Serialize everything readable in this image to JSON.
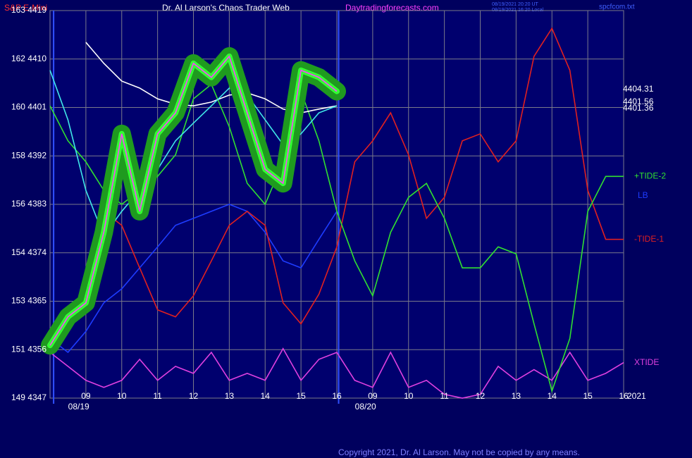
{
  "chart_data": {
    "type": "line",
    "title": "S&P E-Mini",
    "subtitle": "Dr. Al Larson's Chaos Trader Web",
    "website": "Daytradingforecasts.com",
    "timestamps": [
      "08/19/2021 20:20 UT",
      "08/19/2021 16:20 Local"
    ],
    "filename": "spcfcom.txt",
    "copyright": "Copyright 2021, Dr. Al Larson. May not be copied by any means.",
    "year_label": "2021",
    "x": [
      0,
      0.5,
      1,
      1.5,
      2,
      2.5,
      3,
      3.5,
      4,
      4.5,
      5,
      5.5,
      6,
      6.5,
      7,
      7.5,
      8,
      8.5,
      9,
      9.5,
      10,
      10.5,
      11,
      11.5,
      12,
      12.5,
      13,
      13.5,
      14,
      14.5,
      15,
      15.5,
      16
    ],
    "xlim": [
      0,
      16
    ],
    "xticks": [
      {
        "value": 1,
        "label": "09"
      },
      {
        "value": 2,
        "label": "10"
      },
      {
        "value": 3,
        "label": "11"
      },
      {
        "value": 4,
        "label": "12"
      },
      {
        "value": 5,
        "label": "13"
      },
      {
        "value": 6,
        "label": "14"
      },
      {
        "value": 7,
        "label": "15"
      },
      {
        "value": 8,
        "label": "16"
      },
      {
        "value": 9,
        "label": "09"
      },
      {
        "value": 10,
        "label": "10"
      },
      {
        "value": 11,
        "label": "11"
      },
      {
        "value": 12,
        "label": "12"
      },
      {
        "value": 13,
        "label": "13"
      },
      {
        "value": 14,
        "label": "14"
      },
      {
        "value": 15,
        "label": "15"
      },
      {
        "value": 16,
        "label": "16"
      }
    ],
    "date_labels": [
      {
        "value": 0.8,
        "label": "08/19"
      },
      {
        "value": 8.8,
        "label": "08/20"
      }
    ],
    "session_lines": [
      0.1,
      8.05
    ],
    "ylim": [
      4347,
      4419
    ],
    "yticks": [
      {
        "value": 4347,
        "label": "149 4347"
      },
      {
        "value": 4356,
        "label": "151 4356"
      },
      {
        "value": 4365,
        "label": "153 4365"
      },
      {
        "value": 4374,
        "label": "154 4374"
      },
      {
        "value": 4383,
        "label": "156 4383"
      },
      {
        "value": 4392,
        "label": "158 4392"
      },
      {
        "value": 4401,
        "label": "160 4401"
      },
      {
        "value": 4410,
        "label": "162 4410"
      },
      {
        "value": 4419,
        "label": "163 4419"
      }
    ],
    "grid": true,
    "end_labels": [
      "4404.31",
      "4401.56",
      "4401.36"
    ],
    "series": [
      {
        "name": "XTIDE",
        "color": "#e040e0",
        "values": [
          4355.5,
          4352.9,
          4350.3,
          4349.0,
          4350.3,
          4354.2,
          4350.3,
          4352.9,
          4351.6,
          4355.5,
          4350.3,
          4351.6,
          4350.3,
          4356.2,
          4350.3,
          4354.2,
          4355.5,
          4350.3,
          4349.0,
          4355.5,
          4349.0,
          4350.3,
          4347.7,
          4347.0,
          4347.7,
          4352.9,
          4350.3,
          4352.3,
          4350.3,
          4355.5,
          4350.3,
          4351.6,
          4353.6
        ]
      },
      {
        "name": "LB",
        "color": "#1e3cff",
        "values": [
          4358.1,
          4355.5,
          4359.4,
          4364.7,
          4367.3,
          4371.2,
          4375.1,
          4379.1,
          4380.4,
          4381.7,
          4383.0,
          4381.7,
          4377.8,
          4372.5,
          4371.2,
          4376.5,
          4381.7,
          null,
          null,
          null,
          null,
          null,
          null,
          null,
          null,
          null,
          null,
          null,
          null,
          null,
          null,
          null,
          null
        ]
      },
      {
        "name": "-TIDE-1",
        "color": "#e02020",
        "values": [
          null,
          null,
          null,
          4381.7,
          4379.1,
          4371.2,
          4363.4,
          4362.1,
          4366.0,
          4372.5,
          4379.1,
          4381.7,
          4379.1,
          4364.7,
          4360.8,
          4366.3,
          4375.1,
          4390.9,
          4394.8,
          4400.0,
          4392.2,
          4380.4,
          4384.3,
          4394.8,
          4396.1,
          4390.9,
          4394.8,
          4410.5,
          4415.7,
          4407.9,
          4385.6,
          4376.5,
          4376.5
        ]
      },
      {
        "name": "+TIDE-2",
        "color": "#30e030",
        "values": [
          4401.3,
          4394.8,
          4390.9,
          4385.6,
          4383.0,
          4385.6,
          4388.2,
          4392.2,
          4402.6,
          4405.3,
          4397.4,
          4386.9,
          4383.0,
          4390.9,
          4404.0,
          4394.8,
          4381.7,
          4372.5,
          4366.0,
          4377.8,
          4384.3,
          4386.9,
          4380.4,
          4371.2,
          4371.2,
          4375.1,
          4373.8,
          4360.8,
          4348.3,
          4358.1,
          4381.7,
          4388.2,
          4388.2
        ]
      },
      {
        "color": "#ffffff",
        "values": [
          null,
          null,
          4413.1,
          4409.2,
          4405.9,
          4404.6,
          4402.6,
          4401.6,
          4401.3,
          4402.0,
          4403.3,
          4403.7,
          4402.6,
          4400.7,
          4400.0,
          4400.7,
          4401.3,
          null,
          null,
          null,
          null,
          null,
          null,
          null,
          null,
          null,
          null,
          null,
          null,
          null,
          null,
          null,
          null
        ]
      },
      {
        "color": "#40e8e8",
        "values": [
          4407.9,
          4398.7,
          4385.6,
          4377.1,
          4381.7,
          4385.6,
          4389.5,
          4394.8,
          4398.1,
          4401.3,
          4404.6,
          4403.3,
          4398.7,
          4394.1,
          4396.1,
          4400.0,
          4401.3,
          null,
          null,
          null,
          null,
          null,
          null,
          null,
          null,
          null,
          null,
          null,
          null,
          null,
          null,
          null,
          null
        ]
      },
      {
        "color": "#ff40ff",
        "glow_color": "#1f9a1f",
        "values": [
          4356.8,
          4362.1,
          4364.7,
          4377.8,
          4396.1,
          4381.7,
          4396.1,
          4400.0,
          4409.2,
          4406.6,
          4410.5,
          4400.0,
          4389.5,
          4386.9,
          4407.9,
          4406.6,
          4404.0,
          null,
          null,
          null,
          null,
          null,
          null,
          null,
          null,
          null,
          null,
          null,
          null,
          null,
          null,
          null,
          null
        ]
      }
    ]
  }
}
